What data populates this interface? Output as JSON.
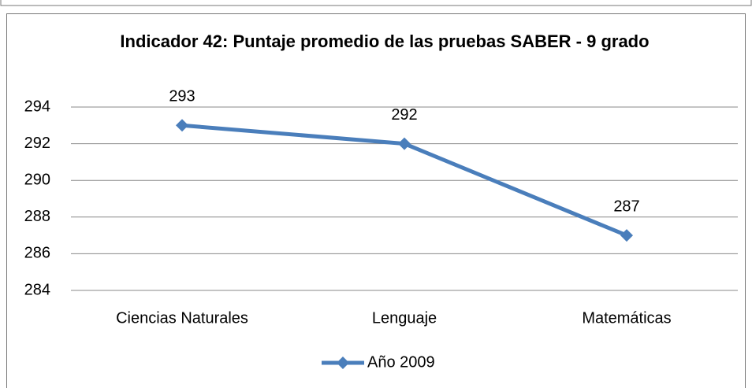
{
  "chart_data": {
    "type": "line",
    "title": "Indicador 42: Puntaje promedio de las pruebas SABER - 9 grado",
    "categories": [
      "Ciencias Naturales",
      "Lenguaje",
      "Matemáticas"
    ],
    "series": [
      {
        "name": "Año 2009",
        "color": "#4a7ebb",
        "values": [
          293,
          292,
          287
        ]
      }
    ],
    "ylim": [
      284,
      294
    ],
    "yticks": [
      284,
      286,
      288,
      290,
      292,
      294
    ],
    "grid": true,
    "legend": "bottom"
  }
}
